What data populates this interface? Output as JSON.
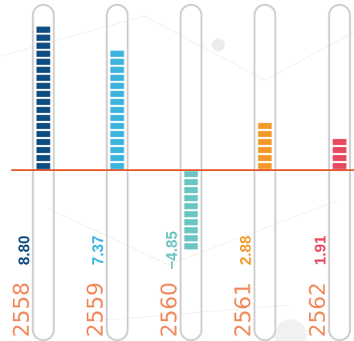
{
  "chart_data": {
    "type": "bar",
    "categories": [
      "2558",
      "2559",
      "2560",
      "2561",
      "2562"
    ],
    "values": [
      8.8,
      7.37,
      -4.85,
      2.88,
      1.91
    ],
    "value_labels": [
      "8.80",
      "7.37",
      "−4.85",
      "2.88",
      "1.91"
    ],
    "title": "",
    "xlabel": "",
    "ylabel": "",
    "grid": false,
    "baseline": 0
  },
  "colors": {
    "bars": [
      "#0f4c81",
      "#3bb4e0",
      "#6cc5c3",
      "#f39a2b",
      "#e84a5f"
    ],
    "category_label": "#f08a5d",
    "axis_line": "#e8562a",
    "track": "#cfcfcf"
  }
}
